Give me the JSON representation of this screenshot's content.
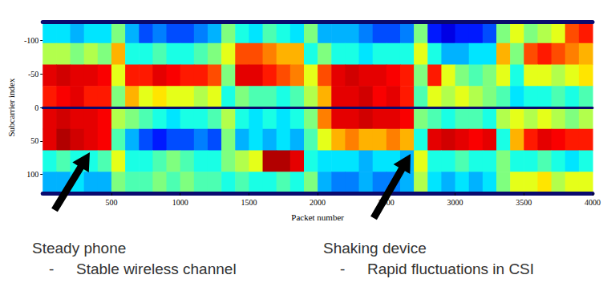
{
  "chart_data": {
    "type": "heatmap",
    "xlabel": "Packet number",
    "ylabel": "Subcarrier index",
    "xlim": [
      0,
      4000
    ],
    "xticks": [
      500,
      1000,
      1500,
      2000,
      2500,
      3000,
      3500,
      4000
    ],
    "ylim": [
      -128,
      128
    ],
    "yticks": [
      -100,
      -50,
      0,
      50,
      100
    ],
    "zlim": [
      0,
      1
    ],
    "x": [
      50,
      150,
      250,
      350,
      450,
      550,
      650,
      750,
      850,
      950,
      1050,
      1150,
      1250,
      1350,
      1450,
      1550,
      1650,
      1750,
      1850,
      1950,
      2050,
      2150,
      2250,
      2350,
      2450,
      2550,
      2650,
      2750,
      2850,
      2950,
      3050,
      3150,
      3250,
      3350,
      3450,
      3550,
      3650,
      3750,
      3850,
      3950
    ],
    "y": [
      -112,
      -80,
      -48,
      -16,
      16,
      48,
      80,
      112
    ],
    "cells": [
      [
        0.35,
        0.35,
        0.3,
        0.35,
        0.35,
        0.5,
        0.3,
        0.2,
        0.25,
        0.2,
        0.2,
        0.25,
        0.3,
        0.5,
        0.4,
        0.35,
        0.45,
        0.4,
        0.35,
        0.5,
        0.3,
        0.3,
        0.3,
        0.25,
        0.2,
        0.2,
        0.25,
        0.5,
        0.15,
        0.1,
        0.15,
        0.15,
        0.2,
        0.5,
        0.6,
        0.5,
        0.55,
        0.6,
        0.8,
        0.85
      ],
      [
        0.55,
        0.55,
        0.5,
        0.55,
        0.5,
        0.7,
        0.4,
        0.4,
        0.45,
        0.4,
        0.4,
        0.45,
        0.5,
        0.6,
        0.8,
        0.8,
        0.75,
        0.7,
        0.7,
        0.4,
        0.5,
        0.4,
        0.4,
        0.35,
        0.4,
        0.4,
        0.4,
        0.6,
        0.4,
        0.3,
        0.3,
        0.35,
        0.35,
        0.7,
        0.5,
        0.8,
        0.85,
        0.8,
        0.75,
        0.7
      ],
      [
        0.9,
        0.92,
        0.9,
        0.9,
        0.88,
        0.6,
        0.85,
        0.85,
        0.9,
        0.88,
        0.85,
        0.85,
        0.8,
        0.5,
        0.9,
        0.9,
        0.85,
        0.8,
        0.75,
        0.6,
        0.8,
        0.9,
        0.92,
        0.9,
        0.9,
        0.88,
        0.85,
        0.5,
        0.85,
        0.6,
        0.5,
        0.45,
        0.5,
        0.6,
        0.4,
        0.6,
        0.6,
        0.55,
        0.6,
        0.65
      ],
      [
        0.85,
        0.88,
        0.9,
        0.85,
        0.85,
        0.5,
        0.7,
        0.6,
        0.65,
        0.6,
        0.6,
        0.55,
        0.6,
        0.4,
        0.5,
        0.45,
        0.45,
        0.4,
        0.45,
        0.55,
        0.7,
        0.9,
        0.9,
        0.92,
        0.88,
        0.9,
        0.85,
        0.45,
        0.6,
        0.55,
        0.6,
        0.55,
        0.5,
        0.45,
        0.35,
        0.4,
        0.4,
        0.45,
        0.4,
        0.45
      ],
      [
        0.9,
        0.92,
        0.9,
        0.9,
        0.88,
        0.55,
        0.5,
        0.45,
        0.4,
        0.35,
        0.4,
        0.4,
        0.45,
        0.55,
        0.4,
        0.35,
        0.4,
        0.35,
        0.4,
        0.5,
        0.75,
        0.9,
        0.9,
        0.92,
        0.9,
        0.9,
        0.88,
        0.5,
        0.45,
        0.4,
        0.45,
        0.45,
        0.4,
        0.55,
        0.6,
        0.55,
        0.6,
        0.55,
        0.5,
        0.55
      ],
      [
        0.9,
        0.95,
        0.92,
        0.9,
        0.88,
        0.45,
        0.3,
        0.2,
        0.15,
        0.2,
        0.2,
        0.25,
        0.2,
        0.5,
        0.3,
        0.35,
        0.3,
        0.35,
        0.3,
        0.45,
        0.6,
        0.7,
        0.75,
        0.7,
        0.7,
        0.75,
        0.7,
        0.4,
        0.9,
        0.92,
        0.9,
        0.88,
        0.9,
        0.4,
        0.7,
        0.85,
        0.9,
        0.88,
        0.85,
        0.85
      ],
      [
        0.4,
        0.45,
        0.4,
        0.4,
        0.45,
        0.6,
        0.4,
        0.4,
        0.45,
        0.5,
        0.45,
        0.4,
        0.4,
        0.5,
        0.55,
        0.6,
        0.95,
        0.95,
        0.9,
        0.4,
        0.35,
        0.35,
        0.35,
        0.3,
        0.35,
        0.35,
        0.3,
        0.6,
        0.4,
        0.4,
        0.45,
        0.4,
        0.4,
        0.5,
        0.4,
        0.4,
        0.45,
        0.4,
        0.35,
        0.4
      ],
      [
        0.3,
        0.3,
        0.35,
        0.3,
        0.3,
        0.5,
        0.45,
        0.45,
        0.5,
        0.45,
        0.5,
        0.45,
        0.45,
        0.4,
        0.45,
        0.4,
        0.4,
        0.45,
        0.4,
        0.5,
        0.3,
        0.25,
        0.25,
        0.3,
        0.25,
        0.25,
        0.3,
        0.55,
        0.35,
        0.3,
        0.35,
        0.3,
        0.35,
        0.5,
        0.6,
        0.6,
        0.65,
        0.55,
        0.6,
        0.6
      ]
    ],
    "annotations": [
      {
        "title": "Steady phone",
        "bullet": "-",
        "items": [
          "Stable wireless channel"
        ]
      },
      {
        "title": "Shaking device",
        "bullet": "-",
        "items": [
          "Rapid fluctuations in CSI"
        ]
      }
    ]
  }
}
